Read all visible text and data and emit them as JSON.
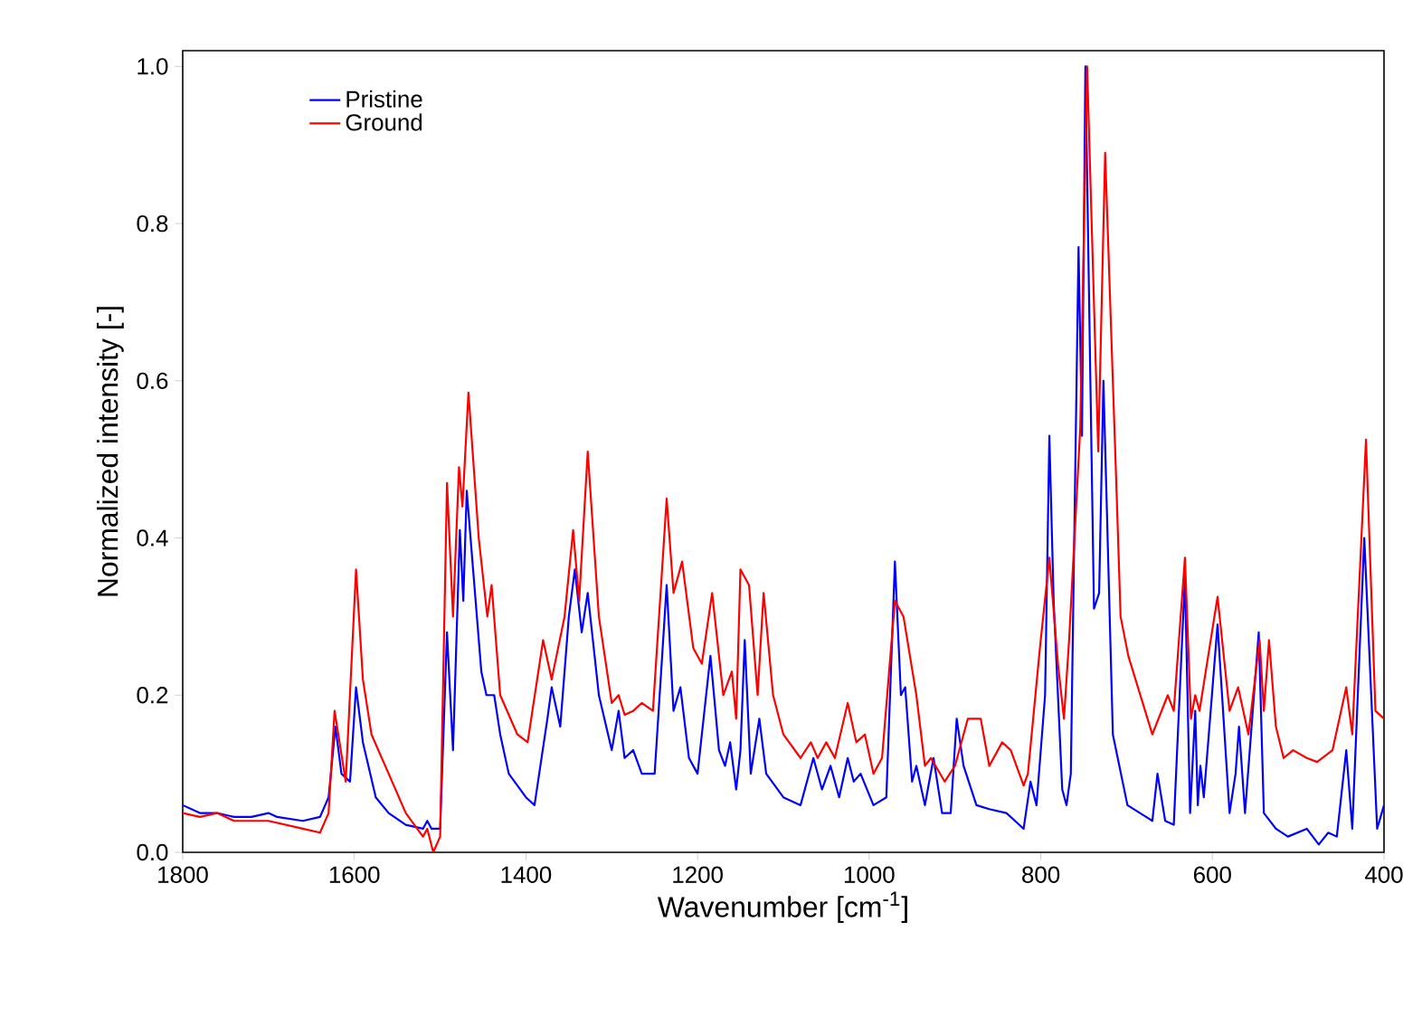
{
  "chart_data": {
    "type": "line",
    "xlabel": "Wavenumber [cm$^{-1}$]",
    "ylabel": "Normalized intensity [-]",
    "xlim": [
      1800,
      400
    ],
    "ylim": [
      0,
      1.02
    ],
    "xticks": [
      1800,
      1600,
      1400,
      1200,
      1000,
      800,
      600,
      400
    ],
    "yticks": [
      {
        "value": 0,
        "label": "0.0"
      },
      {
        "value": 0.2,
        "label": "0.2"
      },
      {
        "value": 0.4,
        "label": "0.4"
      },
      {
        "value": 0.6,
        "label": "0.6"
      },
      {
        "value": 0.8,
        "label": "0.8"
      },
      {
        "value": 1.0,
        "label": "1.0"
      }
    ],
    "legend": "top left",
    "series": [
      {
        "name": "Pristine",
        "color": "#0000ff",
        "x": [
          1800,
          1780,
          1760,
          1740,
          1720,
          1700,
          1690,
          1660,
          1640,
          1630,
          1622,
          1615,
          1605,
          1598,
          1590,
          1575,
          1560,
          1540,
          1520,
          1515,
          1510,
          1500,
          1492,
          1485,
          1477,
          1473,
          1469,
          1452,
          1446,
          1437,
          1430,
          1420,
          1400,
          1390,
          1375,
          1370,
          1360,
          1350,
          1343,
          1335,
          1328,
          1315,
          1300,
          1292,
          1285,
          1275,
          1265,
          1250,
          1236,
          1228,
          1220,
          1210,
          1200,
          1185,
          1175,
          1168,
          1162,
          1155,
          1150,
          1145,
          1138,
          1128,
          1120,
          1100,
          1080,
          1065,
          1055,
          1045,
          1035,
          1025,
          1018,
          1010,
          995,
          980,
          970,
          963,
          958,
          950,
          945,
          935,
          925,
          915,
          905,
          898,
          890,
          875,
          860,
          840,
          830,
          820,
          812,
          805,
          795,
          790,
          785,
          775,
          770,
          765,
          756,
          752,
          748,
          738,
          732,
          727,
          716,
          699,
          670,
          664,
          655,
          645,
          632,
          626,
          620,
          617,
          614,
          610,
          594,
          580,
          573,
          569,
          562,
          546,
          540,
          526,
          512,
          490,
          476,
          465,
          455,
          444,
          437,
          423,
          408,
          400
        ],
        "values": [
          0.06,
          0.05,
          0.05,
          0.045,
          0.045,
          0.05,
          0.045,
          0.04,
          0.045,
          0.07,
          0.16,
          0.1,
          0.09,
          0.21,
          0.14,
          0.07,
          0.05,
          0.035,
          0.03,
          0.04,
          0.03,
          0.03,
          0.28,
          0.13,
          0.41,
          0.32,
          0.46,
          0.23,
          0.2,
          0.2,
          0.15,
          0.1,
          0.07,
          0.06,
          0.17,
          0.21,
          0.16,
          0.3,
          0.36,
          0.28,
          0.33,
          0.2,
          0.13,
          0.18,
          0.12,
          0.13,
          0.1,
          0.1,
          0.34,
          0.18,
          0.21,
          0.12,
          0.1,
          0.25,
          0.13,
          0.11,
          0.14,
          0.08,
          0.13,
          0.27,
          0.1,
          0.17,
          0.1,
          0.07,
          0.06,
          0.12,
          0.08,
          0.11,
          0.07,
          0.12,
          0.09,
          0.1,
          0.06,
          0.07,
          0.37,
          0.2,
          0.21,
          0.09,
          0.11,
          0.06,
          0.12,
          0.05,
          0.05,
          0.17,
          0.11,
          0.06,
          0.055,
          0.05,
          0.04,
          0.03,
          0.09,
          0.06,
          0.2,
          0.53,
          0.32,
          0.08,
          0.06,
          0.1,
          0.77,
          0.53,
          1.0,
          0.31,
          0.33,
          0.6,
          0.15,
          0.06,
          0.04,
          0.1,
          0.04,
          0.035,
          0.35,
          0.05,
          0.18,
          0.06,
          0.11,
          0.07,
          0.29,
          0.05,
          0.1,
          0.16,
          0.05,
          0.28,
          0.05,
          0.03,
          0.02,
          0.03,
          0.01,
          0.025,
          0.02,
          0.13,
          0.03,
          0.4,
          0.03,
          0.06
        ]
      },
      {
        "name": "Ground",
        "color": "#ff0000",
        "x": [
          1800,
          1780,
          1760,
          1740,
          1700,
          1660,
          1640,
          1630,
          1623,
          1610,
          1598,
          1590,
          1580,
          1560,
          1540,
          1520,
          1515,
          1508,
          1500,
          1492,
          1485,
          1478,
          1474,
          1467,
          1455,
          1445,
          1440,
          1430,
          1410,
          1398,
          1380,
          1370,
          1355,
          1345,
          1338,
          1328,
          1315,
          1300,
          1292,
          1285,
          1275,
          1265,
          1252,
          1236,
          1228,
          1218,
          1205,
          1195,
          1183,
          1170,
          1160,
          1155,
          1150,
          1140,
          1130,
          1123,
          1112,
          1100,
          1080,
          1068,
          1060,
          1050,
          1040,
          1025,
          1015,
          1005,
          995,
          985,
          970,
          960,
          945,
          935,
          928,
          912,
          900,
          885,
          870,
          860,
          845,
          835,
          820,
          815,
          801,
          790,
          780,
          773,
          767,
          754,
          746,
          733,
          725,
          712,
          707,
          698,
          670,
          652,
          645,
          632,
          625,
          620,
          615,
          594,
          580,
          570,
          558,
          545,
          540,
          534,
          526,
          517,
          506,
          490,
          478,
          460,
          444,
          437,
          421,
          410,
          400
        ],
        "values": [
          0.05,
          0.045,
          0.05,
          0.04,
          0.04,
          0.03,
          0.025,
          0.05,
          0.18,
          0.09,
          0.36,
          0.22,
          0.15,
          0.1,
          0.05,
          0.02,
          0.03,
          0.0,
          0.02,
          0.47,
          0.3,
          0.49,
          0.44,
          0.585,
          0.4,
          0.3,
          0.34,
          0.2,
          0.15,
          0.14,
          0.27,
          0.22,
          0.3,
          0.41,
          0.32,
          0.51,
          0.3,
          0.19,
          0.2,
          0.175,
          0.18,
          0.19,
          0.18,
          0.45,
          0.33,
          0.37,
          0.26,
          0.24,
          0.33,
          0.2,
          0.23,
          0.17,
          0.36,
          0.34,
          0.2,
          0.33,
          0.2,
          0.15,
          0.12,
          0.14,
          0.12,
          0.14,
          0.12,
          0.19,
          0.14,
          0.15,
          0.1,
          0.12,
          0.32,
          0.3,
          0.2,
          0.11,
          0.12,
          0.09,
          0.11,
          0.17,
          0.17,
          0.11,
          0.14,
          0.13,
          0.085,
          0.1,
          0.26,
          0.375,
          0.24,
          0.17,
          0.27,
          0.54,
          1.0,
          0.51,
          0.89,
          0.47,
          0.3,
          0.25,
          0.15,
          0.2,
          0.18,
          0.375,
          0.17,
          0.2,
          0.18,
          0.325,
          0.18,
          0.21,
          0.15,
          0.27,
          0.18,
          0.27,
          0.16,
          0.12,
          0.13,
          0.12,
          0.115,
          0.13,
          0.21,
          0.15,
          0.525,
          0.18,
          0.17
        ]
      }
    ]
  }
}
